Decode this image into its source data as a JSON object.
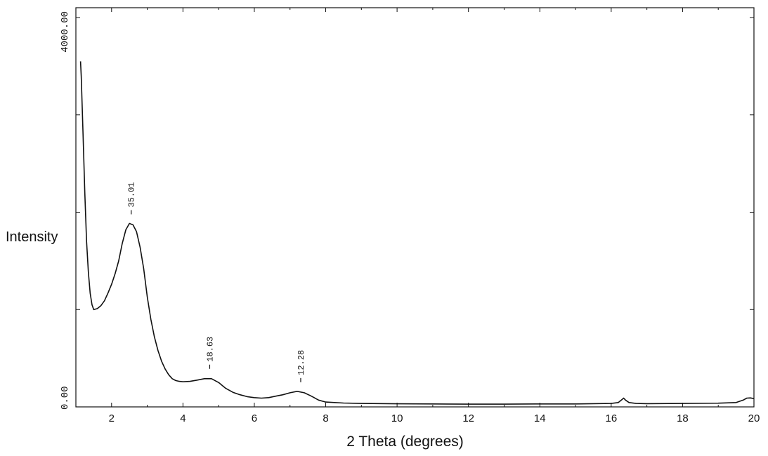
{
  "chart_data": {
    "type": "line",
    "title": "",
    "xlabel": "2 Theta (degrees)",
    "ylabel": "Intensity",
    "xlim": [
      1.0,
      20.0
    ],
    "ylim": [
      0,
      4000
    ],
    "x_ticks": [
      2,
      4,
      6,
      8,
      10,
      12,
      14,
      16,
      18,
      20
    ],
    "x_tick_labels": [
      "2",
      "4",
      "6",
      "8",
      "10",
      "12",
      "14",
      "16",
      "18",
      "20"
    ],
    "y_ticks": [
      0,
      4000
    ],
    "y_tick_labels": [
      "0.00",
      "4000.00"
    ],
    "grid": false,
    "line_color": "#111111",
    "series": [
      {
        "x": [
          1.13,
          1.15,
          1.2,
          1.25,
          1.3,
          1.35,
          1.4,
          1.45,
          1.5,
          1.6,
          1.7,
          1.8,
          1.9,
          2.0,
          2.1,
          2.2,
          2.3,
          2.4,
          2.5,
          2.6,
          2.7,
          2.8,
          2.9,
          3.0,
          3.1,
          3.2,
          3.3,
          3.4,
          3.5,
          3.6,
          3.7,
          3.8,
          3.9,
          4.0,
          4.2,
          4.4,
          4.6,
          4.8,
          5.0,
          5.2,
          5.4,
          5.6,
          5.8,
          6.0,
          6.2,
          6.4,
          6.6,
          6.8,
          7.0,
          7.2,
          7.4,
          7.6,
          7.8,
          8.0,
          8.5,
          9.0,
          10.0,
          11.0,
          12.0,
          13.0,
          14.0,
          15.0,
          16.0,
          16.2,
          16.3,
          16.35,
          16.4,
          16.5,
          16.7,
          17.0,
          18.0,
          19.0,
          19.5,
          19.7,
          19.8,
          19.9,
          20.0
        ],
        "y": [
          3550,
          3400,
          2800,
          2200,
          1700,
          1380,
          1170,
          1050,
          1000,
          1010,
          1040,
          1090,
          1170,
          1260,
          1370,
          1500,
          1680,
          1820,
          1885,
          1870,
          1800,
          1640,
          1420,
          1130,
          900,
          720,
          580,
          470,
          390,
          330,
          290,
          270,
          262,
          258,
          262,
          275,
          290,
          290,
          250,
          190,
          150,
          125,
          105,
          95,
          90,
          95,
          110,
          125,
          145,
          160,
          145,
          110,
          70,
          50,
          40,
          35,
          32,
          30,
          28,
          28,
          30,
          30,
          35,
          45,
          75,
          90,
          70,
          45,
          35,
          33,
          35,
          38,
          45,
          70,
          90,
          92,
          85
        ]
      }
    ],
    "annotations": [
      {
        "text": "35.01",
        "x": 2.55
      },
      {
        "text": "18.63",
        "x": 4.75
      },
      {
        "text": "12.28",
        "x": 7.3
      }
    ]
  }
}
